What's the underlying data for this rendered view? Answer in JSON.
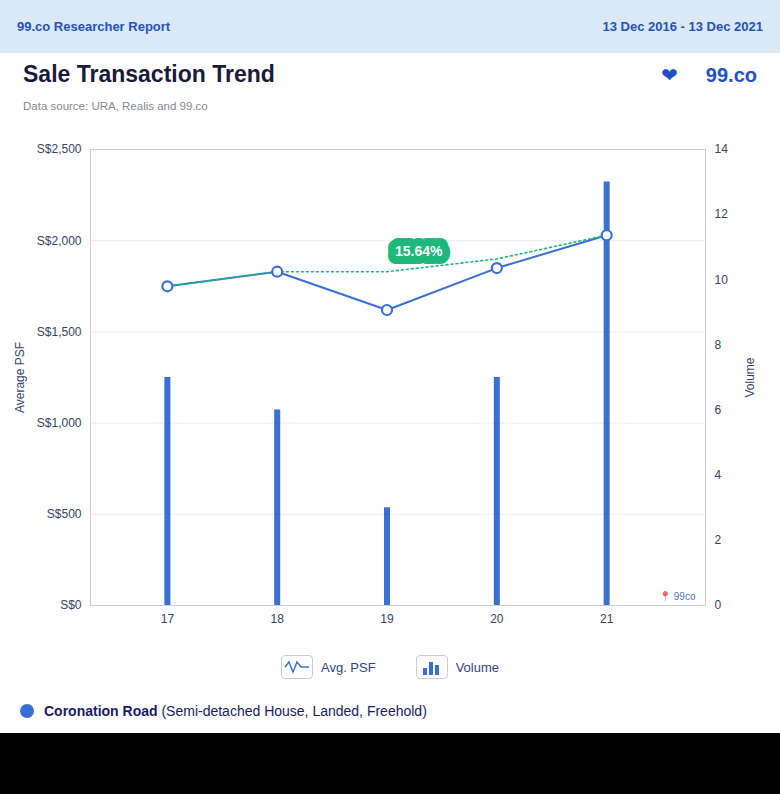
{
  "chart_data": {
    "type": "line",
    "title": "Sale Transaction Trend",
    "subtitle": "Data source: URA, Realis and 99.co",
    "header": [
      "99.co Researcher Report",
      "13 Dec 2016 - 13 Dec 2021"
    ],
    "header_color": "#dbe8f5",
    "logo": [
      "❤",
      "99.co"
    ],
    "watermark": "📍 99co",
    "caption": [
      "Coronation Road",
      " (Semi-detached House, Landed, Freehold)"
    ],
    "x": [
      17,
      18,
      19,
      20,
      21
    ],
    "xlim": [
      16.3,
      21.9
    ],
    "xticks": [
      17,
      18,
      19,
      20,
      21
    ],
    "ylabel": "Average PSF",
    "ylim": [
      0,
      2500
    ],
    "yticks": [
      {
        "value": 0,
        "label": "S$0"
      },
      {
        "value": 500,
        "label": "S$500"
      },
      {
        "value": 1000,
        "label": "S$1,000"
      },
      {
        "value": 1500,
        "label": "S$1,500"
      },
      {
        "value": 2000,
        "label": "S$2,000"
      },
      {
        "value": 2500,
        "label": "S$2,500"
      }
    ],
    "y2label": "Volume",
    "y2lim": [
      0,
      14
    ],
    "y2ticks": [
      0,
      2,
      4,
      6,
      8,
      10,
      12,
      14
    ],
    "grid": true,
    "legend": "bottom",
    "series": [
      {
        "name": "Avg. PSF",
        "type": "line",
        "color": "#3a6fd8",
        "marker": "circle",
        "values": [
          1750,
          1830,
          1620,
          1850,
          2030
        ]
      },
      {
        "type": "line",
        "color": "#1eb87a",
        "line_style": "dotted",
        "values": [
          1750,
          1830,
          1830,
          1900,
          2030
        ]
      },
      {
        "name": "Volume",
        "type": "bar",
        "axis": "y2",
        "color": "#3a6fd8",
        "values": [
          7,
          6,
          3,
          7,
          13
        ]
      }
    ],
    "annotations": [
      {
        "text": "15.64%",
        "x": 19.0,
        "y": 1870,
        "color": "#1eb87a"
      }
    ]
  }
}
